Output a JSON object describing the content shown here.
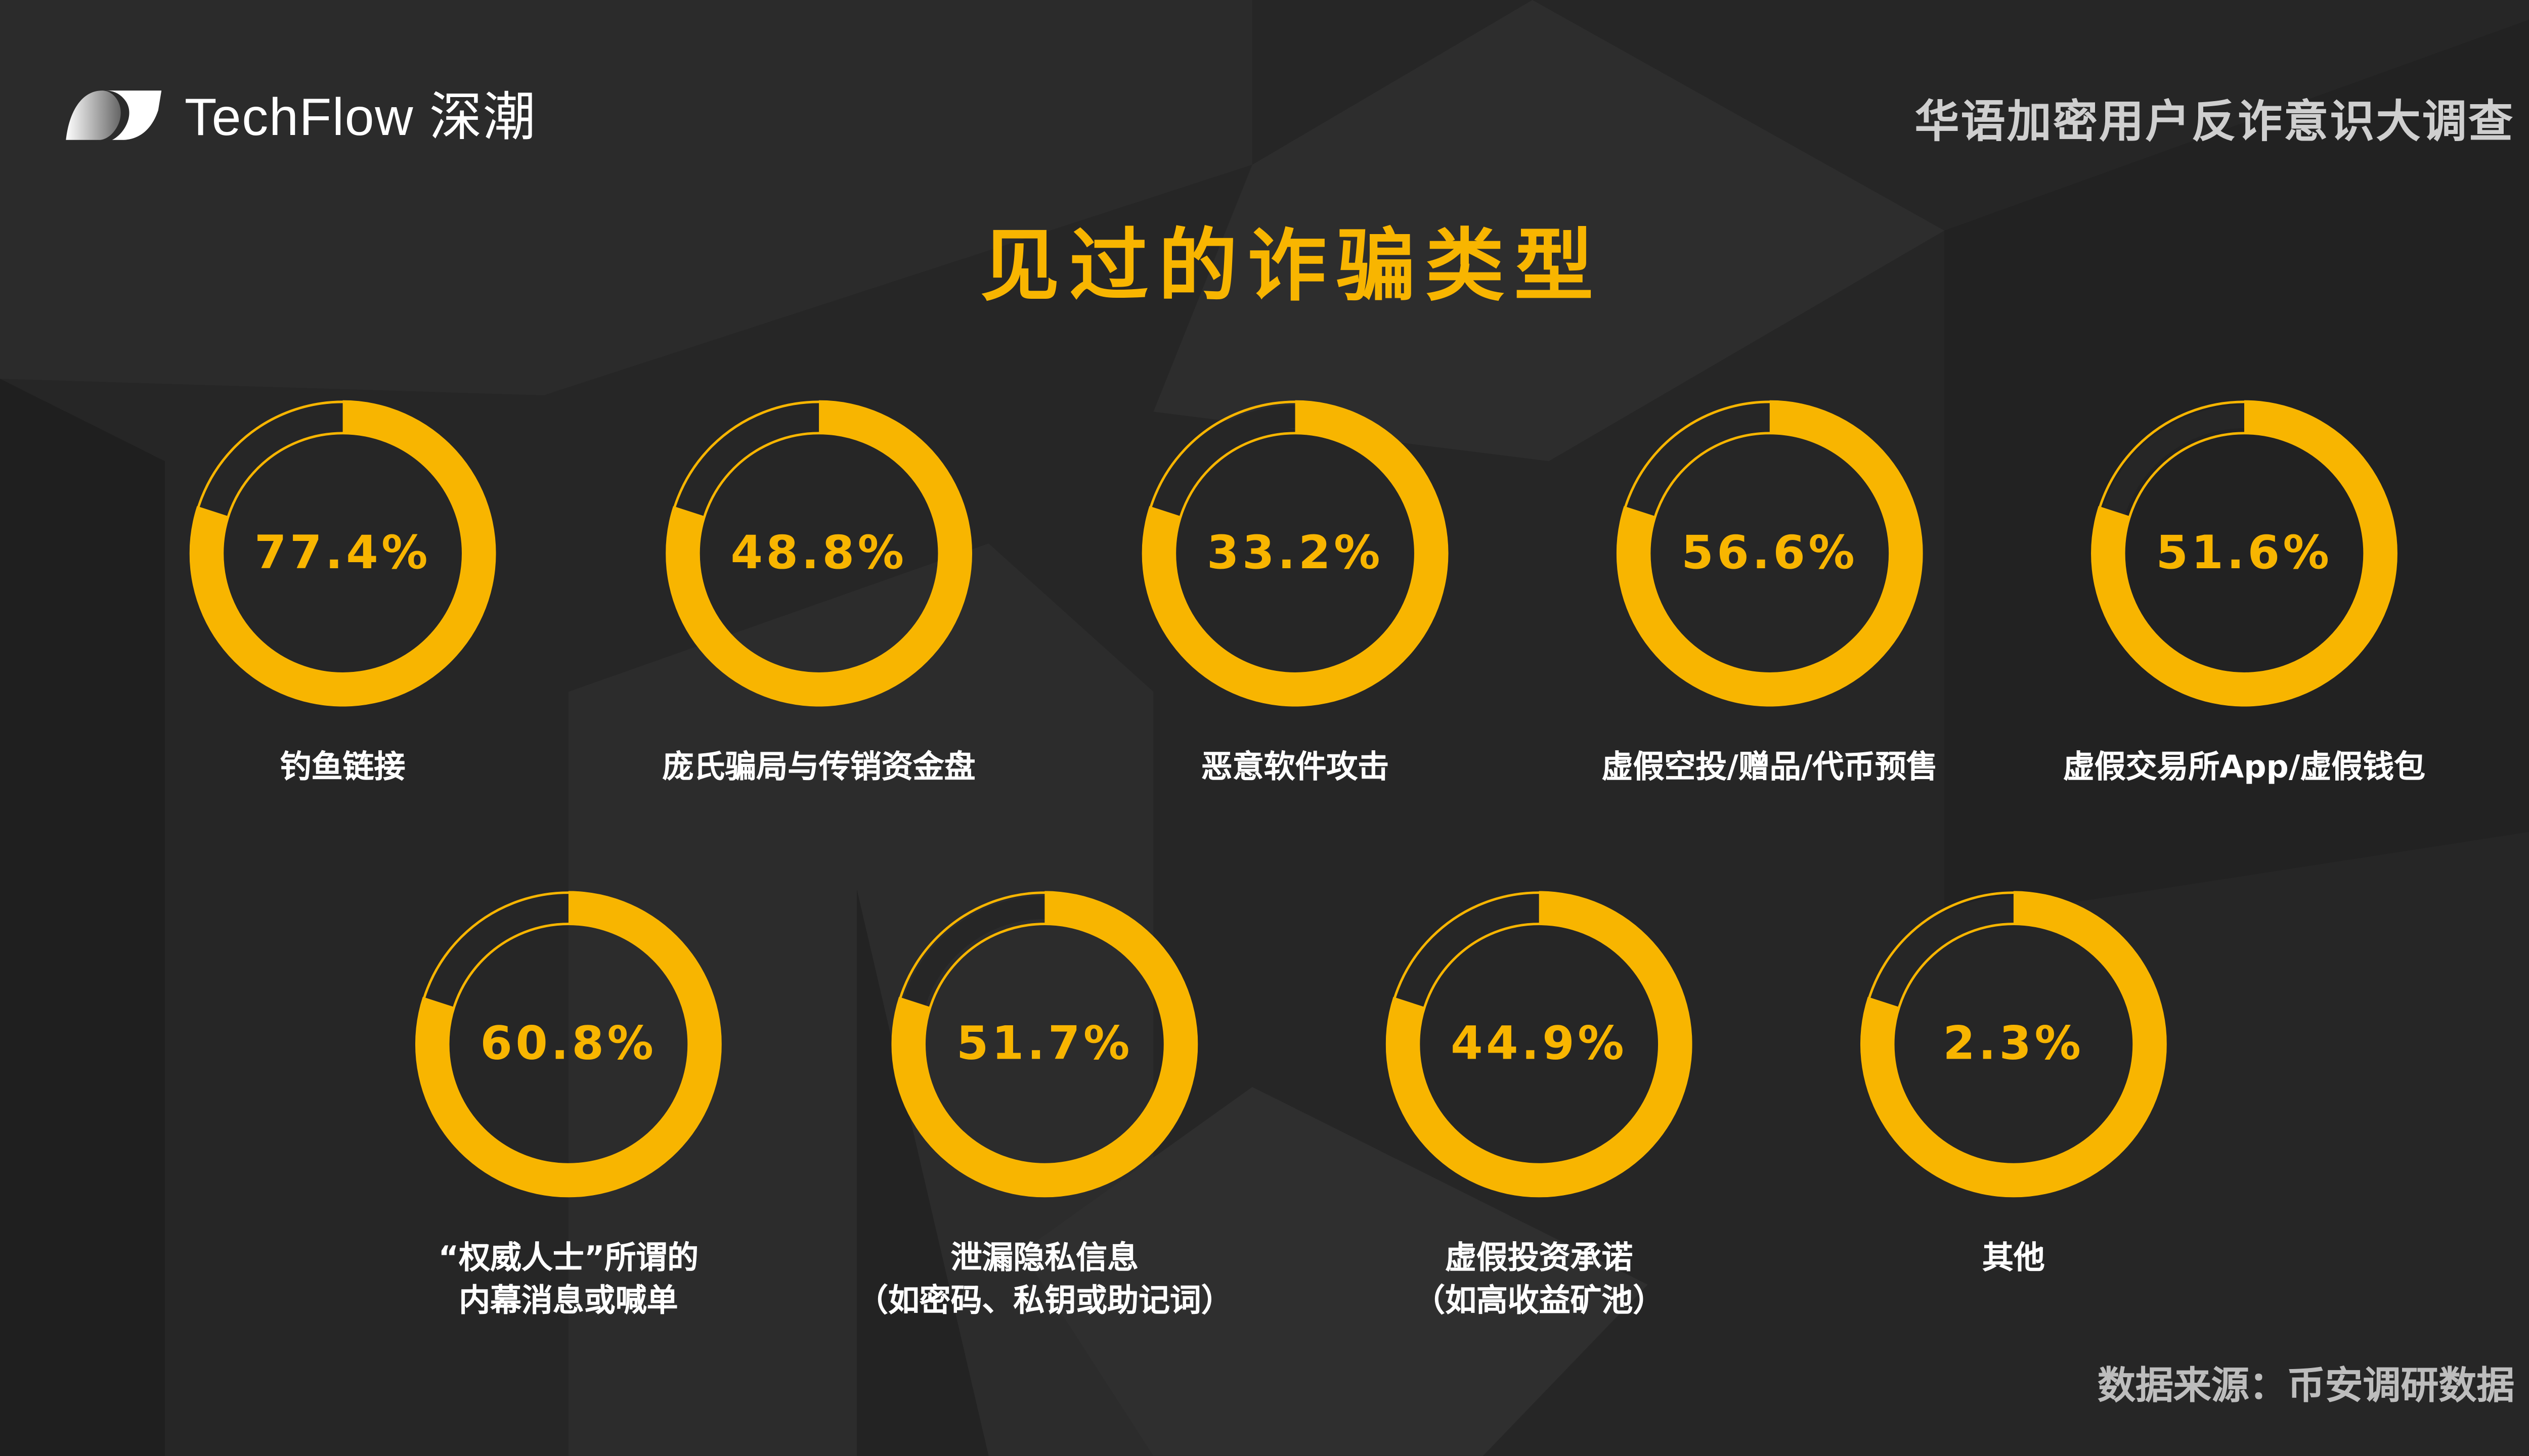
{
  "brand": {
    "logo_text": "TechFlow 深潮"
  },
  "header": {
    "survey_title": "华语加密用户反诈意识大调查"
  },
  "colors": {
    "accent": "#F8B500",
    "background": "#262626",
    "text": "#FFFFFF"
  },
  "chart_data": {
    "type": "donut",
    "title": "见过的诈骗类型",
    "unit": "%",
    "items": [
      {
        "label": "钓鱼链接",
        "value": 77.4,
        "display": "77.4%"
      },
      {
        "label": "庞氏骗局与传销资金盘",
        "value": 48.8,
        "display": "48.8%"
      },
      {
        "label": "恶意软件攻击",
        "value": 33.2,
        "display": "33.2%"
      },
      {
        "label": "虚假空投/赠品/代币预售",
        "value": 56.6,
        "display": "56.6%"
      },
      {
        "label": "虚假交易所App/虚假钱包",
        "value": 51.6,
        "display": "51.6%"
      },
      {
        "label": "“权威人士”所谓的",
        "label2": "内幕消息或喊单",
        "value": 60.8,
        "display": "60.8%"
      },
      {
        "label": "泄漏隐私信息",
        "label2": "（如密码、私钥或助记词）",
        "value": 51.7,
        "display": "51.7%"
      },
      {
        "label": "虚假投资承诺",
        "label2": "（如高收益矿池）",
        "value": 44.9,
        "display": "44.9%"
      },
      {
        "label": "其他",
        "value": 2.3,
        "display": "2.3%"
      }
    ]
  },
  "footer": {
    "source": "数据来源：币安调研数据"
  }
}
